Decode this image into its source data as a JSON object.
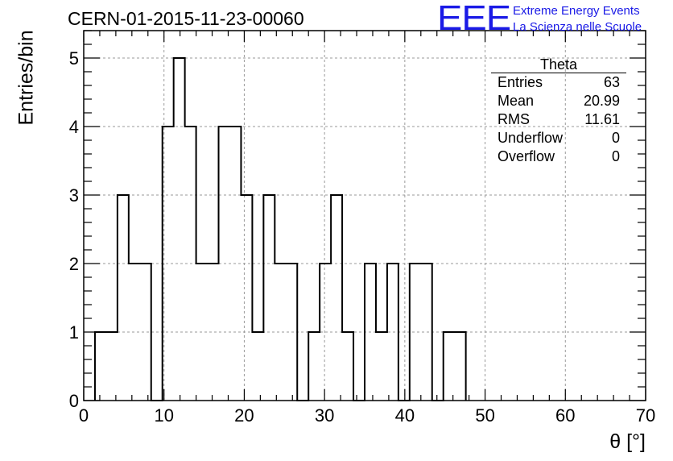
{
  "title": "CERN-01-2015-11-23-00060",
  "logo": {
    "mark": "EEE",
    "line1": "Extreme Energy Events",
    "line2": "La Scienza nelle Scuole",
    "color": "#1a1ae6"
  },
  "stats_box": {
    "name": "Theta",
    "rows": [
      {
        "label": "Entries",
        "value": "63"
      },
      {
        "label": "Mean",
        "value": "20.99"
      },
      {
        "label": "RMS",
        "value": "11.61"
      },
      {
        "label": "Underflow",
        "value": "0"
      },
      {
        "label": "Overflow",
        "value": "0"
      }
    ]
  },
  "chart_data": {
    "type": "bar",
    "title": "CERN-01-2015-11-23-00060",
    "xlabel": "θ [°]",
    "ylabel": "Entries/bin",
    "xlim": [
      0,
      70
    ],
    "ylim": [
      0,
      5.4
    ],
    "x_ticks": [
      0,
      10,
      20,
      30,
      40,
      50,
      60,
      70
    ],
    "y_ticks": [
      0,
      1,
      2,
      3,
      4,
      5
    ],
    "grid": true,
    "bin_width": 1.4,
    "bin_edges_start": 1.4,
    "series": [
      {
        "values": [
          1,
          1,
          3,
          2,
          2,
          0,
          4,
          5,
          4,
          2,
          2,
          4,
          4,
          3,
          1,
          3,
          2,
          2,
          0,
          1,
          2,
          3,
          1,
          0,
          2,
          1,
          2,
          0,
          2,
          2,
          0,
          1,
          1
        ]
      }
    ],
    "line_color": "#000000"
  }
}
